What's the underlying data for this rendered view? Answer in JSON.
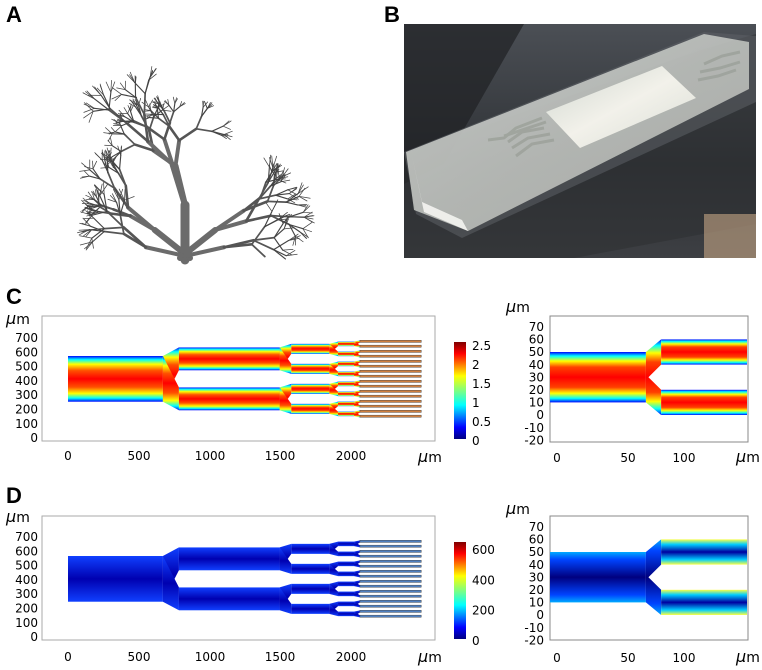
{
  "panels": {
    "A": {
      "label": "A"
    },
    "B": {
      "label": "B"
    },
    "C": {
      "label": "C"
    },
    "D": {
      "label": "D"
    }
  },
  "units": {
    "mu": "μ",
    "m": "m"
  },
  "colors": {
    "jet": [
      "#00007f",
      "#0000ff",
      "#007fff",
      "#00ffff",
      "#7fff7f",
      "#ffff00",
      "#ff7f00",
      "#ff0000",
      "#7f0000"
    ],
    "background_dark": "#3a3d42",
    "slide_glass": "#d9d9d2"
  },
  "chart_data": [
    {
      "id": "C-left",
      "type": "heatmap",
      "y_ticks": [
        "700",
        "600",
        "500",
        "400",
        "300",
        "200",
        "100",
        "0"
      ],
      "x_ticks": [
        "0",
        "500",
        "1000",
        "1500",
        "2000"
      ],
      "xlim": [
        -50,
        2550
      ],
      "ylim": [
        -80,
        800
      ],
      "geometry": "bifurcating microchannel, inlet y 240-560, outlets 16 channels x 2000-2420",
      "colorbar": {
        "min": 0,
        "max": 2.5,
        "ticks": [
          "2.5",
          "2",
          "1.5",
          "1",
          "0.5",
          "0"
        ]
      }
    },
    {
      "id": "C-right",
      "type": "heatmap",
      "y_ticks": [
        "70",
        "60",
        "50",
        "40",
        "30",
        "20",
        "10",
        "0",
        "-10",
        "-20"
      ],
      "x_ticks": [
        "0",
        "50",
        "100"
      ],
      "xlim": [
        -5,
        150
      ],
      "ylim": [
        -25,
        75
      ]
    },
    {
      "id": "D-left",
      "type": "heatmap",
      "y_ticks": [
        "700",
        "600",
        "500",
        "400",
        "300",
        "200",
        "100",
        "0"
      ],
      "x_ticks": [
        "0",
        "500",
        "1000",
        "1500",
        "2000"
      ],
      "xlim": [
        -50,
        2550
      ],
      "ylim": [
        -80,
        800
      ],
      "colorbar": {
        "min": 0,
        "max": 650,
        "ticks": [
          "600",
          "400",
          "200",
          "0"
        ]
      }
    },
    {
      "id": "D-right",
      "type": "heatmap",
      "y_ticks": [
        "70",
        "60",
        "50",
        "40",
        "30",
        "20",
        "10",
        "0",
        "-10",
        "-20"
      ],
      "x_ticks": [
        "0",
        "50",
        "100"
      ],
      "xlim": [
        -5,
        150
      ],
      "ylim": [
        -25,
        75
      ]
    }
  ]
}
